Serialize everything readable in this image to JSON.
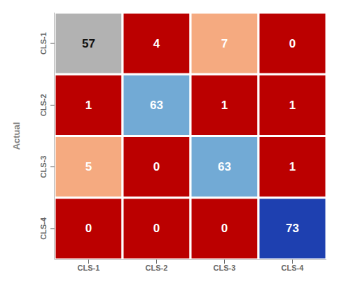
{
  "chart_data": {
    "type": "heatmap",
    "ylabel": "Actual",
    "categories": [
      "CLS-1",
      "CLS-2",
      "CLS-3",
      "CLS-4"
    ],
    "values": [
      [
        57,
        4,
        7,
        0
      ],
      [
        1,
        63,
        1,
        1
      ],
      [
        5,
        0,
        63,
        1
      ],
      [
        0,
        0,
        0,
        73
      ]
    ],
    "colors": [
      [
        "#b2b2b2",
        "#bb0000",
        "#f5aa80",
        "#bb0000"
      ],
      [
        "#bb0000",
        "#72aad5",
        "#bb0000",
        "#bb0000"
      ],
      [
        "#f5aa80",
        "#bb0000",
        "#72aad5",
        "#bb0000"
      ],
      [
        "#bb0000",
        "#bb0000",
        "#bb0000",
        "#1e40b0"
      ]
    ],
    "text_colors": [
      [
        "#111111",
        "#ffffff",
        "#ffffff",
        "#ffffff"
      ],
      [
        "#ffffff",
        "#ffffff",
        "#ffffff",
        "#ffffff"
      ],
      [
        "#ffffff",
        "#ffffff",
        "#ffffff",
        "#ffffff"
      ],
      [
        "#ffffff",
        "#ffffff",
        "#ffffff",
        "#ffffff"
      ]
    ],
    "data_labels": true
  }
}
